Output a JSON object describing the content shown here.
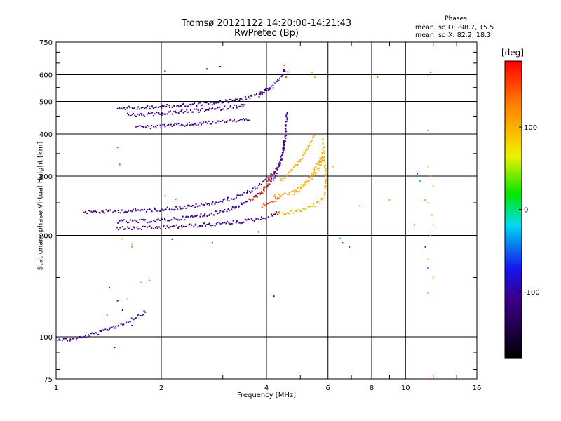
{
  "chart_data": {
    "type": "scatter",
    "title": "Tromsø 20121122 14:20:00-14:21:43",
    "subtitle": "RwPretec (Bp)",
    "xlabel": "Frequency [MHz]",
    "ylabel": "Stationary phase Virtual Height [km]",
    "x_scale": "log",
    "y_scale": "log",
    "xlim": [
      1,
      16
    ],
    "ylim": [
      75,
      750
    ],
    "x_ticks": [
      1,
      2,
      4,
      6,
      8,
      10,
      16
    ],
    "y_ticks": [
      75,
      100,
      200,
      300,
      400,
      500,
      600,
      750
    ],
    "grid": true,
    "annotation": {
      "header": "Phases",
      "line1": "mean, sd,O: -98.7, 15.5",
      "line2": "mean, sd,X:  82.2, 18.3"
    },
    "colorbar": {
      "title": "[deg]",
      "ticks": [
        100,
        0,
        -100
      ],
      "range": [
        -180,
        180
      ]
    },
    "series": [
      {
        "segments": [
          [
            [
              1.0,
              99
            ],
            [
              1.08,
              98
            ],
            [
              1.15,
              99
            ],
            [
              1.2,
              100
            ],
            [
              1.28,
              102
            ],
            [
              1.35,
              103
            ],
            [
              1.42,
              106
            ],
            [
              1.5,
              108
            ],
            [
              1.58,
              110
            ],
            [
              1.68,
              114
            ],
            [
              1.76,
              117
            ],
            [
              1.82,
              119
            ]
          ],
          [
            [
              1.2,
              235
            ],
            [
              1.35,
              235
            ],
            [
              1.5,
              236
            ],
            [
              1.7,
              237
            ],
            [
              2.0,
              239
            ],
            [
              2.3,
              242
            ],
            [
              2.6,
              246
            ],
            [
              2.9,
              251
            ],
            [
              3.2,
              258
            ],
            [
              3.5,
              267
            ],
            [
              3.8,
              280
            ],
            [
              4.0,
              292
            ],
            [
              4.2,
              306
            ],
            [
              4.35,
              322
            ],
            [
              4.45,
              345
            ],
            [
              4.52,
              385
            ],
            [
              4.56,
              430
            ],
            [
              4.58,
              470
            ]
          ],
          [
            [
              1.5,
              220
            ],
            [
              1.7,
              220
            ],
            [
              2.0,
              222
            ],
            [
              2.3,
              225
            ],
            [
              2.6,
              229
            ],
            [
              2.9,
              234
            ],
            [
              3.2,
              241
            ],
            [
              3.5,
              251
            ],
            [
              3.8,
              265
            ],
            [
              4.0,
              278
            ],
            [
              4.2,
              296
            ],
            [
              4.35,
              320
            ],
            [
              4.45,
              350
            ],
            [
              4.5,
              390
            ]
          ],
          [
            [
              1.5,
              210
            ],
            [
              1.7,
              210
            ],
            [
              2.0,
              211
            ],
            [
              2.3,
              213
            ],
            [
              2.7,
              215
            ],
            [
              3.0,
              217
            ],
            [
              3.4,
              220
            ],
            [
              3.8,
              224
            ],
            [
              4.2,
              230
            ],
            [
              4.4,
              236
            ]
          ],
          [
            [
              1.5,
              478
            ],
            [
              1.7,
              478
            ],
            [
              2.0,
              482
            ],
            [
              2.3,
              487
            ],
            [
              2.6,
              491
            ],
            [
              2.9,
              496
            ],
            [
              3.2,
              503
            ],
            [
              3.5,
              512
            ],
            [
              3.8,
              525
            ],
            [
              4.0,
              538
            ],
            [
              4.2,
              555
            ]
          ],
          [
            [
              1.6,
              455
            ],
            [
              1.8,
              456
            ],
            [
              2.0,
              460
            ],
            [
              2.3,
              466
            ],
            [
              2.6,
              470
            ],
            [
              2.9,
              475
            ],
            [
              3.2,
              482
            ],
            [
              3.5,
              490
            ]
          ],
          [
            [
              1.7,
              420
            ],
            [
              1.9,
              420
            ],
            [
              2.1,
              423
            ],
            [
              2.4,
              427
            ],
            [
              2.7,
              431
            ],
            [
              3.0,
              436
            ],
            [
              3.3,
              440
            ],
            [
              3.6,
              444
            ]
          ],
          [
            [
              3.8,
              520
            ],
            [
              4.0,
              540
            ],
            [
              4.2,
              560
            ],
            [
              4.35,
              580
            ],
            [
              4.45,
              600
            ],
            [
              4.5,
              615
            ],
            [
              4.55,
              625
            ]
          ]
        ],
        "points": [
          [
            1.47,
            93
          ],
          [
            1.42,
            140
          ],
          [
            1.5,
            128
          ],
          [
            1.55,
            120
          ],
          [
            1.65,
            108
          ],
          [
            2.15,
            195
          ],
          [
            2.8,
            190
          ],
          [
            3.8,
            205
          ],
          [
            4.2,
            132
          ],
          [
            6.6,
            190
          ],
          [
            6.9,
            185
          ],
          [
            10.8,
            305
          ],
          [
            11.6,
            600
          ],
          [
            11.4,
            185
          ],
          [
            11.6,
            160
          ],
          [
            11.6,
            135
          ],
          [
            2.05,
            615
          ],
          [
            2.7,
            624
          ],
          [
            2.95,
            634
          ]
        ]
      },
      {
        "segments": [
          [
            [
              4.3,
              232
            ],
            [
              4.6,
              233
            ],
            [
              4.9,
              236
            ],
            [
              5.2,
              240
            ],
            [
              5.5,
              246
            ],
            [
              5.7,
              252
            ],
            [
              5.85,
              262
            ],
            [
              5.9,
              280
            ],
            [
              5.9,
              310
            ],
            [
              5.85,
              350
            ],
            [
              5.8,
              390
            ]
          ],
          [
            [
              4.2,
              260
            ],
            [
              4.5,
              265
            ],
            [
              4.8,
              272
            ],
            [
              5.1,
              282
            ],
            [
              5.4,
              296
            ],
            [
              5.6,
              312
            ],
            [
              5.75,
              330
            ],
            [
              5.8,
              360
            ]
          ],
          [
            [
              4.4,
              290
            ],
            [
              4.7,
              310
            ],
            [
              5.0,
              335
            ],
            [
              5.2,
              360
            ],
            [
              5.4,
              385
            ],
            [
              5.5,
              400
            ]
          ],
          [
            [
              4.8,
              265
            ],
            [
              5.0,
              275
            ],
            [
              5.2,
              290
            ],
            [
              5.4,
              305
            ],
            [
              5.6,
              325
            ],
            [
              5.8,
              345
            ]
          ]
        ],
        "points": [
          [
            1.55,
            195
          ],
          [
            1.65,
            188
          ],
          [
            1.75,
            145
          ],
          [
            1.6,
            130
          ],
          [
            5.4,
            610
          ],
          [
            5.5,
            590
          ],
          [
            6.2,
            320
          ],
          [
            7.4,
            245
          ],
          [
            8.3,
            590
          ],
          [
            9.0,
            255
          ],
          [
            11.6,
            320
          ],
          [
            11.8,
            300
          ],
          [
            12.0,
            280
          ],
          [
            11.6,
            250
          ],
          [
            11.9,
            230
          ],
          [
            12.0,
            215
          ],
          [
            11.8,
            200
          ],
          [
            11.6,
            170
          ],
          [
            12.0,
            150
          ]
        ]
      },
      {
        "segments": [
          [
            [
              3.6,
              255
            ],
            [
              3.75,
              260
            ],
            [
              3.9,
              270
            ],
            [
              4.0,
              280
            ],
            [
              4.1,
              295
            ],
            [
              4.2,
              310
            ]
          ],
          [
            [
              3.9,
              245
            ],
            [
              4.1,
              250
            ],
            [
              4.3,
              258
            ],
            [
              4.4,
              265
            ]
          ]
        ],
        "points": [
          [
            1.5,
            365
          ],
          [
            1.52,
            325
          ],
          [
            4.5,
            640
          ],
          [
            4.6,
            612
          ],
          [
            4.55,
            590
          ],
          [
            8.3,
            592
          ],
          [
            10.6,
            215
          ],
          [
            11.8,
            610
          ],
          [
            11.6,
            410
          ],
          [
            11.7,
            75
          ]
        ]
      },
      {
        "segments": [],
        "points": [
          [
            1.4,
            116
          ],
          [
            1.85,
            147
          ],
          [
            1.65,
            185
          ],
          [
            2.05,
            262
          ],
          [
            2.2,
            256
          ],
          [
            6.5,
            196
          ],
          [
            11.0,
            290
          ],
          [
            11.4,
            255
          ]
        ]
      }
    ]
  }
}
